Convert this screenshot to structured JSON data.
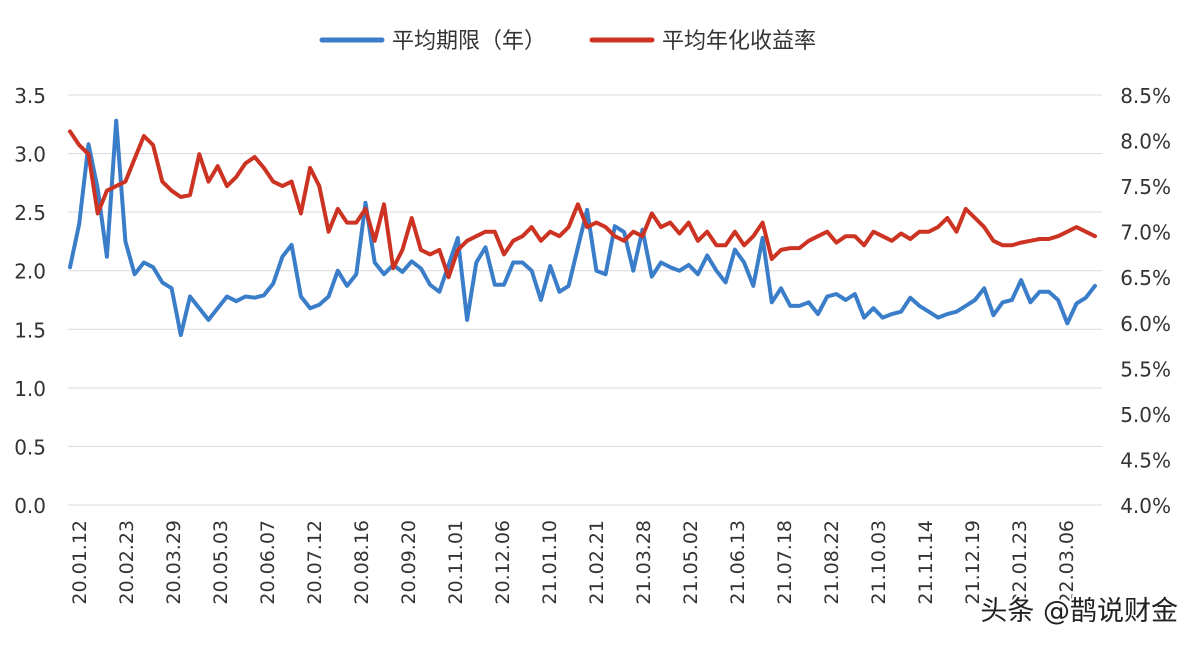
{
  "chart_data": {
    "type": "line",
    "title": "",
    "legend": {
      "placement": "top-center"
    },
    "grid": true,
    "x_tick_labels": [
      "20.01.12",
      "20.02.23",
      "20.03.29",
      "20.05.03",
      "20.06.07",
      "20.07.12",
      "20.08.16",
      "20.09.20",
      "20.11.01",
      "20.12.06",
      "21.01.10",
      "21.02.21",
      "21.03.28",
      "21.05.02",
      "21.06.13",
      "21.07.18",
      "21.08.22",
      "21.10.03",
      "21.11.14",
      "21.12.19",
      "22.01.23",
      "22.03.06"
    ],
    "y_left": {
      "ticks": [
        "0.0",
        "0.5",
        "1.0",
        "1.5",
        "2.0",
        "2.5",
        "3.0",
        "3.5"
      ],
      "range": [
        0,
        3.5
      ]
    },
    "y_right": {
      "ticks": [
        "4.0%",
        "4.5%",
        "5.0%",
        "5.5%",
        "6.0%",
        "6.5%",
        "7.0%",
        "7.5%",
        "8.0%",
        "8.5%"
      ],
      "range": [
        4.0,
        8.5
      ]
    },
    "series": [
      {
        "name": "平均期限（年）",
        "axis": "left",
        "color": "#3a7dc9",
        "values": [
          2.03,
          2.4,
          3.08,
          2.7,
          2.12,
          3.28,
          2.25,
          1.97,
          2.07,
          2.03,
          1.9,
          1.85,
          1.45,
          1.78,
          1.68,
          1.58,
          1.68,
          1.78,
          1.74,
          1.78,
          1.77,
          1.79,
          1.89,
          2.12,
          2.22,
          1.78,
          1.68,
          1.71,
          1.78,
          2.0,
          1.87,
          1.97,
          2.58,
          2.07,
          1.97,
          2.05,
          1.99,
          2.08,
          2.02,
          1.88,
          1.82,
          2.05,
          2.28,
          1.58,
          2.07,
          2.2,
          1.88,
          1.88,
          2.07,
          2.07,
          2.0,
          1.75,
          2.04,
          1.82,
          1.87,
          2.2,
          2.52,
          2.0,
          1.97,
          2.38,
          2.33,
          2.0,
          2.35,
          1.95,
          2.07,
          2.03,
          2.0,
          2.05,
          1.97,
          2.13,
          2.0,
          1.9,
          2.18,
          2.07,
          1.87,
          2.28,
          1.73,
          1.85,
          1.7,
          1.7,
          1.73,
          1.63,
          1.78,
          1.8,
          1.75,
          1.8,
          1.6,
          1.68,
          1.6,
          1.63,
          1.65,
          1.77,
          1.7,
          1.65,
          1.6,
          1.63,
          1.65,
          1.7,
          1.75,
          1.85,
          1.62,
          1.73,
          1.75,
          1.92,
          1.73,
          1.82,
          1.82,
          1.75,
          1.55,
          1.72,
          1.77,
          1.87
        ]
      },
      {
        "name": "平均年化收益率",
        "axis": "right",
        "color": "#cc3322",
        "values": [
          8.1,
          7.95,
          7.85,
          7.2,
          7.45,
          7.5,
          7.55,
          7.8,
          8.05,
          7.95,
          7.55,
          7.45,
          7.38,
          7.4,
          7.85,
          7.55,
          7.72,
          7.5,
          7.6,
          7.75,
          7.82,
          7.7,
          7.55,
          7.5,
          7.55,
          7.2,
          7.7,
          7.5,
          7.0,
          7.25,
          7.1,
          7.1,
          7.25,
          6.9,
          7.3,
          6.6,
          6.8,
          7.15,
          6.8,
          6.75,
          6.8,
          6.5,
          6.8,
          6.9,
          6.95,
          7.0,
          7.0,
          6.75,
          6.9,
          6.95,
          7.05,
          6.9,
          7.0,
          6.95,
          7.05,
          7.3,
          7.05,
          7.1,
          7.05,
          6.95,
          6.9,
          7.0,
          6.95,
          7.2,
          7.05,
          7.1,
          6.98,
          7.1,
          6.9,
          7.0,
          6.85,
          6.85,
          7.0,
          6.85,
          6.95,
          7.1,
          6.7,
          6.8,
          6.82,
          6.82,
          6.9,
          6.95,
          7.0,
          6.88,
          6.95,
          6.95,
          6.85,
          7.0,
          6.95,
          6.9,
          6.98,
          6.92,
          7.0,
          7.0,
          7.05,
          7.15,
          7.0,
          7.25,
          7.15,
          7.05,
          6.9,
          6.85,
          6.85,
          6.88,
          6.9,
          6.92,
          6.92,
          6.95,
          7.0,
          7.05,
          7.0,
          6.95
        ]
      }
    ]
  },
  "watermark": {
    "text": "头条 @鹊说财金"
  }
}
